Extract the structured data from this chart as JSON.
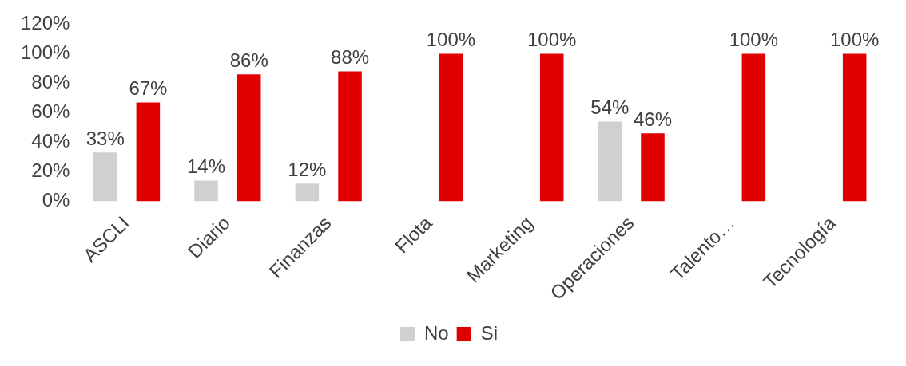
{
  "chart_data": {
    "type": "bar",
    "categories": [
      "ASCLI",
      "Diario",
      "Finanzas",
      "Flota",
      "Marketing",
      "Operaciones",
      "Talento…",
      "Tecnología"
    ],
    "series": [
      {
        "name": "No",
        "color": "#d0d0d0",
        "values": [
          33,
          14,
          12,
          0,
          0,
          54,
          0,
          0
        ],
        "value_labels": [
          "33%",
          "14%",
          "12%",
          null,
          null,
          "54%",
          null,
          null
        ]
      },
      {
        "name": "Si",
        "color": "#e00000",
        "values": [
          67,
          86,
          88,
          100,
          100,
          46,
          100,
          100
        ],
        "value_labels": [
          "67%",
          "86%",
          "88%",
          "100%",
          "100%",
          "46%",
          "100%",
          "100%"
        ]
      }
    ],
    "ylim": [
      0,
      120
    ],
    "yticks": [
      {
        "value": 0,
        "label": "0%"
      },
      {
        "value": 20,
        "label": "20%"
      },
      {
        "value": 40,
        "label": "40%"
      },
      {
        "value": 60,
        "label": "60%"
      },
      {
        "value": 80,
        "label": "80%"
      },
      {
        "value": 100,
        "label": "100%"
      },
      {
        "value": 120,
        "label": "120%"
      }
    ],
    "grid": false,
    "legend": "bottom"
  }
}
